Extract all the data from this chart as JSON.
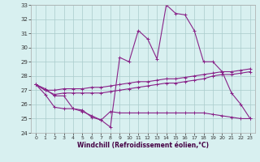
{
  "xlabel": "Windchill (Refroidissement éolien,°C)",
  "background_color": "#d8f0f0",
  "grid_color": "#aacccc",
  "line_color": "#882288",
  "xlim": [
    -0.5,
    23.5
  ],
  "ylim": [
    24,
    33
  ],
  "xticks": [
    0,
    1,
    2,
    3,
    4,
    5,
    6,
    7,
    8,
    9,
    10,
    11,
    12,
    13,
    14,
    15,
    16,
    17,
    18,
    19,
    20,
    21,
    22,
    23
  ],
  "yticks": [
    24,
    25,
    26,
    27,
    28,
    29,
    30,
    31,
    32,
    33
  ],
  "series1": [
    27.4,
    27.1,
    26.6,
    26.6,
    25.7,
    25.6,
    25.1,
    24.9,
    24.4,
    29.3,
    29.0,
    31.2,
    30.6,
    29.2,
    33.0,
    32.4,
    32.3,
    31.2,
    29.0,
    29.0,
    28.3,
    26.8,
    26.0,
    25.0
  ],
  "series2": [
    27.4,
    27.0,
    27.0,
    27.1,
    27.1,
    27.1,
    27.2,
    27.2,
    27.3,
    27.4,
    27.5,
    27.6,
    27.6,
    27.7,
    27.8,
    27.8,
    27.9,
    28.0,
    28.1,
    28.2,
    28.3,
    28.3,
    28.4,
    28.5
  ],
  "series3": [
    27.4,
    27.0,
    26.7,
    26.8,
    26.8,
    26.8,
    26.8,
    26.8,
    26.9,
    27.0,
    27.1,
    27.2,
    27.3,
    27.4,
    27.5,
    27.5,
    27.6,
    27.7,
    27.8,
    28.0,
    28.1,
    28.1,
    28.2,
    28.3
  ],
  "series4": [
    27.4,
    26.7,
    25.8,
    25.7,
    25.7,
    25.5,
    25.2,
    24.9,
    25.5,
    25.4,
    25.4,
    25.4,
    25.4,
    25.4,
    25.4,
    25.4,
    25.4,
    25.4,
    25.4,
    25.3,
    25.2,
    25.1,
    25.0,
    25.0
  ]
}
